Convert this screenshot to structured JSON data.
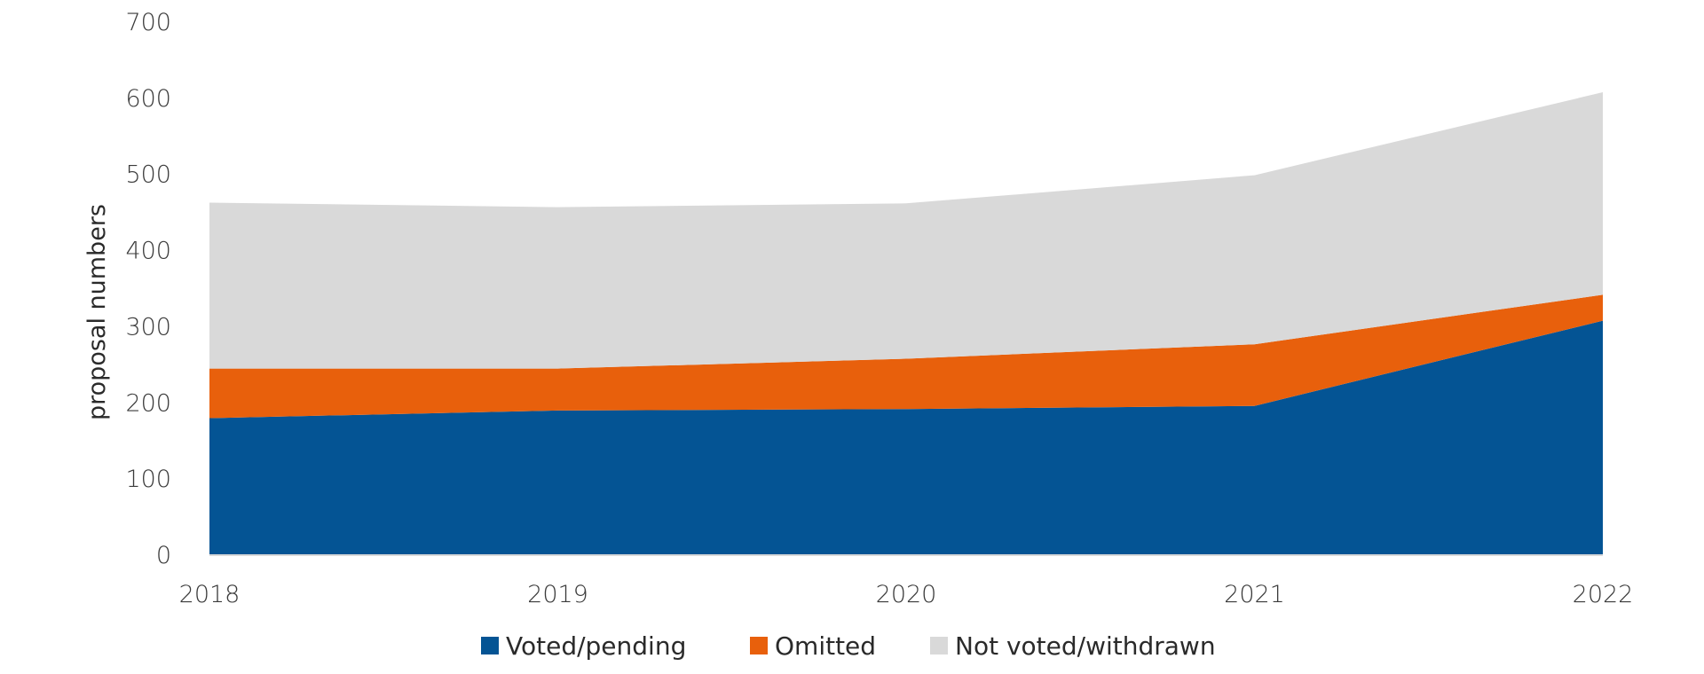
{
  "chart_data": {
    "type": "area",
    "stacked": true,
    "title": "",
    "xlabel": "",
    "ylabel": "proposal numbers",
    "x": [
      "2018",
      "2019",
      "2020",
      "2021",
      "2022"
    ],
    "ylim": [
      0,
      700
    ],
    "yticks": [
      0,
      100,
      200,
      300,
      400,
      500,
      600,
      700
    ],
    "grid": false,
    "legend_position": "bottom",
    "series": [
      {
        "name": "Voted/pending",
        "color": "#045494",
        "values": [
          180,
          190,
          192,
          196,
          308
        ]
      },
      {
        "name": "Omitted",
        "color": "#e8600c",
        "values": [
          65,
          55,
          66,
          81,
          34
        ]
      },
      {
        "name": "Not voted/withdrawn",
        "color": "#d9d9d9",
        "values": [
          218,
          212,
          204,
          222,
          266
        ]
      }
    ]
  }
}
